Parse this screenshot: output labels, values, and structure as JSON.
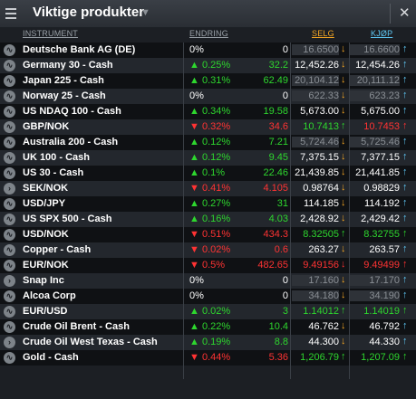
{
  "window": {
    "title": "Viktige produkter"
  },
  "columns": {
    "instrument": "INSTRUMENT",
    "change": "ENDRING",
    "sell": "SELG",
    "buy": "KJØP"
  },
  "colors": {
    "up": "#2ed62e",
    "down": "#ff3333",
    "sell_header": "#f5a623",
    "buy_header": "#5fc8f5"
  },
  "rows": [
    {
      "icon": "wave",
      "name": "Deutsche Bank AG (DE)",
      "dir": "flat",
      "pct": "0%",
      "chg": "0",
      "sell": "16.6500",
      "buy": "16.6600",
      "sell_style": "grey",
      "buy_style": "grey",
      "sell_arrow": "orange",
      "buy_arrow": "blue"
    },
    {
      "icon": "wave",
      "name": "Germany 30 - Cash",
      "dir": "up",
      "pct": "0.25%",
      "chg": "32.2",
      "sell": "12,452.26",
      "buy": "12,454.26",
      "sell_style": "white",
      "buy_style": "white",
      "sell_arrow": "orange",
      "buy_arrow": "blue"
    },
    {
      "icon": "wave",
      "name": "Japan 225 - Cash",
      "dir": "up",
      "pct": "0.31%",
      "chg": "62.49",
      "sell": "20,104.12",
      "buy": "20,111.12",
      "sell_style": "grey",
      "buy_style": "grey",
      "sell_arrow": "orange",
      "buy_arrow": "blue"
    },
    {
      "icon": "wave",
      "name": "Norway 25 - Cash",
      "dir": "flat",
      "pct": "0%",
      "chg": "0",
      "sell": "622.33",
      "buy": "623.23",
      "sell_style": "grey",
      "buy_style": "grey",
      "sell_arrow": "orange",
      "buy_arrow": "blue"
    },
    {
      "icon": "wave",
      "name": "US NDAQ 100 - Cash",
      "dir": "up",
      "pct": "0.34%",
      "chg": "19.58",
      "sell": "5,673.00",
      "buy": "5,675.00",
      "sell_style": "white",
      "buy_style": "white",
      "sell_arrow": "orange",
      "buy_arrow": "blue"
    },
    {
      "icon": "wave",
      "name": "GBP/NOK",
      "dir": "down",
      "pct": "0.32%",
      "chg": "34.6",
      "sell": "10.7413",
      "buy": "10.7453",
      "sell_style": "green",
      "buy_style": "red",
      "sell_arrow": "green",
      "buy_arrow": "red"
    },
    {
      "icon": "wave",
      "name": "Australia 200 - Cash",
      "dir": "up",
      "pct": "0.12%",
      "chg": "7.21",
      "sell": "5,724.46",
      "buy": "5,725.46",
      "sell_style": "grey",
      "buy_style": "grey",
      "sell_arrow": "orange",
      "buy_arrow": "blue"
    },
    {
      "icon": "wave",
      "name": "UK 100 - Cash",
      "dir": "up",
      "pct": "0.12%",
      "chg": "9.45",
      "sell": "7,375.15",
      "buy": "7,377.15",
      "sell_style": "white",
      "buy_style": "white",
      "sell_arrow": "orange",
      "buy_arrow": "blue"
    },
    {
      "icon": "wave",
      "name": "US 30 - Cash",
      "dir": "up",
      "pct": "0.1%",
      "chg": "22.46",
      "sell": "21,439.85",
      "buy": "21,441.85",
      "sell_style": "white",
      "buy_style": "white",
      "sell_arrow": "orange",
      "buy_arrow": "blue"
    },
    {
      "icon": "chevron",
      "name": "SEK/NOK",
      "dir": "down",
      "pct": "0.41%",
      "chg": "4.105",
      "sell": "0.98764",
      "buy": "0.98829",
      "sell_style": "white",
      "buy_style": "white",
      "sell_arrow": "orange",
      "buy_arrow": "blue"
    },
    {
      "icon": "wave",
      "name": "USD/JPY",
      "dir": "up",
      "pct": "0.27%",
      "chg": "31",
      "sell": "114.185",
      "buy": "114.192",
      "sell_style": "white",
      "buy_style": "white",
      "sell_arrow": "orange",
      "buy_arrow": "blue"
    },
    {
      "icon": "wave",
      "name": "US SPX 500 - Cash",
      "dir": "up",
      "pct": "0.16%",
      "chg": "4.03",
      "sell": "2,428.92",
      "buy": "2,429.42",
      "sell_style": "white",
      "buy_style": "white",
      "sell_arrow": "orange",
      "buy_arrow": "blue"
    },
    {
      "icon": "wave",
      "name": "USD/NOK",
      "dir": "down",
      "pct": "0.51%",
      "chg": "434.3",
      "sell": "8.32505",
      "buy": "8.32755",
      "sell_style": "green",
      "buy_style": "green",
      "sell_arrow": "green",
      "buy_arrow": "green"
    },
    {
      "icon": "wave",
      "name": "Copper - Cash",
      "dir": "down",
      "pct": "0.02%",
      "chg": "0.6",
      "sell": "263.27",
      "buy": "263.57",
      "sell_style": "white",
      "buy_style": "white",
      "sell_arrow": "orange",
      "buy_arrow": "blue"
    },
    {
      "icon": "wave",
      "name": "EUR/NOK",
      "dir": "down",
      "pct": "0.5%",
      "chg": "482.65",
      "sell": "9.49156",
      "buy": "9.49499",
      "sell_style": "red",
      "buy_style": "red",
      "sell_arrow": "red",
      "buy_arrow": "red"
    },
    {
      "icon": "chevron",
      "name": "Snap Inc",
      "dir": "flat",
      "pct": "0%",
      "chg": "0",
      "sell": "17.160",
      "buy": "17.170",
      "sell_style": "grey",
      "buy_style": "grey",
      "sell_arrow": "orange",
      "buy_arrow": "blue"
    },
    {
      "icon": "wave",
      "name": "Alcoa Corp",
      "dir": "flat",
      "pct": "0%",
      "chg": "0",
      "sell": "34.180",
      "buy": "34.190",
      "sell_style": "grey",
      "buy_style": "grey",
      "sell_arrow": "orange",
      "buy_arrow": "blue"
    },
    {
      "icon": "wave",
      "name": "EUR/USD",
      "dir": "up",
      "pct": "0.02%",
      "chg": "3",
      "sell": "1.14012",
      "buy": "1.14019",
      "sell_style": "green",
      "buy_style": "green",
      "sell_arrow": "green",
      "buy_arrow": "green"
    },
    {
      "icon": "wave",
      "name": "Crude Oil Brent - Cash",
      "dir": "up",
      "pct": "0.22%",
      "chg": "10.4",
      "sell": "46.762",
      "buy": "46.792",
      "sell_style": "white",
      "buy_style": "white",
      "sell_arrow": "orange",
      "buy_arrow": "blue"
    },
    {
      "icon": "chevron",
      "name": "Crude Oil West Texas - Cash",
      "dir": "up",
      "pct": "0.19%",
      "chg": "8.8",
      "sell": "44.300",
      "buy": "44.330",
      "sell_style": "white",
      "buy_style": "white",
      "sell_arrow": "orange",
      "buy_arrow": "blue"
    },
    {
      "icon": "wave",
      "name": "Gold - Cash",
      "dir": "down",
      "pct": "0.44%",
      "chg": "5.36",
      "sell": "1,206.79",
      "buy": "1,207.09",
      "sell_style": "green",
      "buy_style": "green",
      "sell_arrow": "green",
      "buy_arrow": "green"
    }
  ]
}
